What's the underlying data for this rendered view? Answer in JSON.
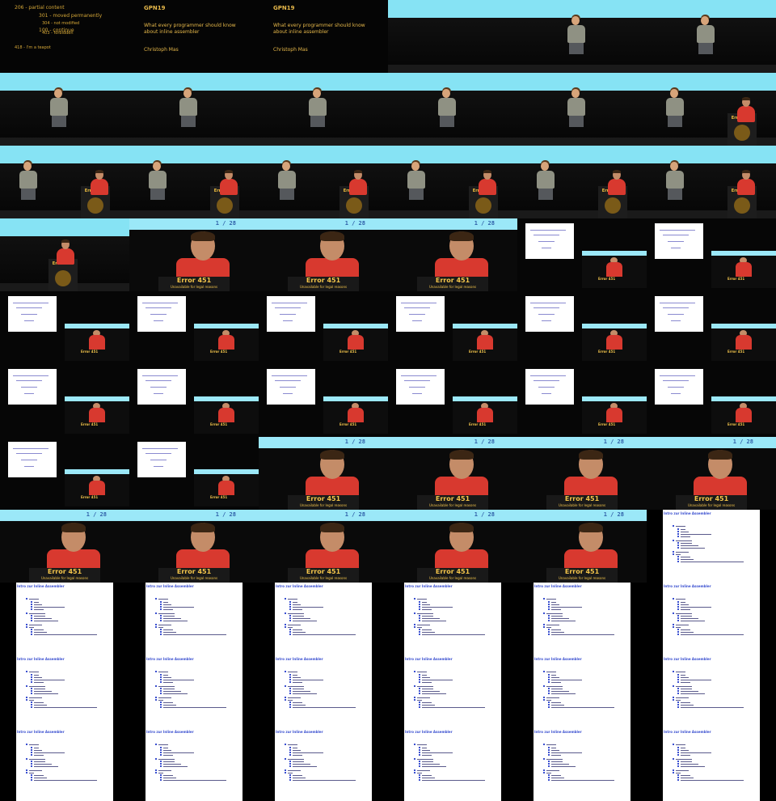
{
  "title_slide": {
    "event": "GPN19",
    "title": "What every programmer should know about inline assembler",
    "author": "Christoph Mas",
    "http_codes": [
      "206 - partial content",
      "304 - not modified",
      "100 - continue",
      "418 - I'm a teapot",
      "301 - moved permanently",
      "403 - forbidden"
    ]
  },
  "podium_banner": "Error 451",
  "closeup": {
    "error_title": "Error 451",
    "error_subtitle": "Unavailable for legal reasons",
    "page": "1 / 28"
  },
  "doc_slide": {
    "heading": "Intro zur Inline Assembler"
  },
  "colors": {
    "screen": "#86e3f4",
    "gold": "#f2c44b",
    "shirt_red": "#d8392f",
    "link_blue": "#3a4fd0"
  },
  "tiles": [
    "title-http",
    "title-slide",
    "title-slide-full",
    "stage-empty",
    "stage-wide",
    "stage-wide",
    "speaker-a",
    "speaker-a",
    "speaker-a",
    "speaker-a",
    "speaker-a",
    "speaker-podium",
    "speaker-podium",
    "speaker-podium",
    "speaker-podium",
    "speaker-podium",
    "speaker-podium",
    "speaker-podium",
    "podium-only",
    "closeup",
    "closeup",
    "closeup",
    "split",
    "split",
    "split",
    "split",
    "split",
    "split",
    "split",
    "split",
    "split",
    "split",
    "split",
    "split",
    "split",
    "split",
    "split",
    "split",
    "closeup2",
    "closeup2",
    "closeup2",
    "closeup2",
    "closeup2",
    "closeup2",
    "closeup2",
    "closeup2",
    "closeup2",
    "doc",
    "doc",
    "doc",
    "doc",
    "doc",
    "doc",
    "doc",
    "doc",
    "doc",
    "doc",
    "doc",
    "doc",
    "doc",
    "doc",
    "doc",
    "doc",
    "doc",
    "doc",
    "doc"
  ]
}
